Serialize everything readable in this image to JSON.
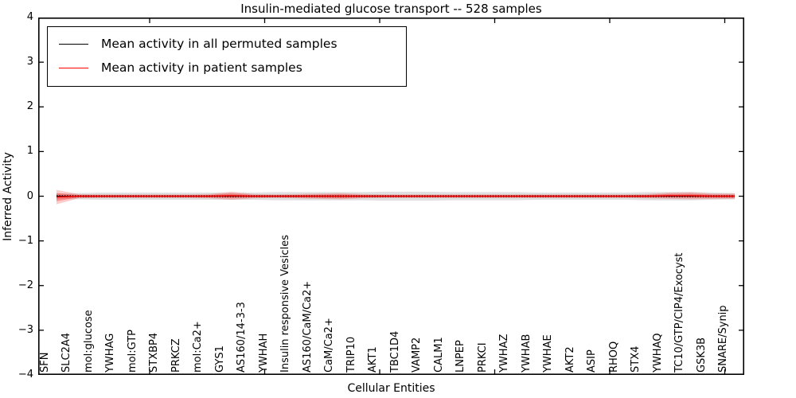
{
  "figure": {
    "title": "Insulin-mediated glucose transport -- 528 samples"
  },
  "axes": {
    "xlabel": "Cellular Entities",
    "ylabel": "Inferred Activity"
  },
  "legend": {
    "position": "upper left",
    "items": [
      {
        "label": "Mean activity in all permuted samples",
        "color": "#000000"
      },
      {
        "label": "Mean activity in patient samples",
        "color": "#ff0000"
      }
    ]
  },
  "chart_data": {
    "type": "line",
    "title": "Insulin-mediated glucose transport -- 528 samples",
    "xlabel": "Cellular Entities",
    "ylabel": "Inferred Activity",
    "ylim": [
      -4,
      4
    ],
    "yticks": [
      4,
      3,
      2,
      1,
      0,
      -1,
      -2,
      -3,
      -4
    ],
    "grid": false,
    "legend_position": "upper left",
    "categories": [
      "SFN",
      "SLC2A4",
      "mol:glucose",
      "YWHAG",
      "mol:GTP",
      "STXBP4",
      "PRKCZ",
      "mol:Ca2+",
      "GYS1",
      "AS160/14-3-3",
      "YWHAH",
      "Insulin responsive Vesicles",
      "AS160/CaM/Ca2+",
      "CaM/Ca2+",
      "TRIP10",
      "AKT1",
      "TBC1D4",
      "VAMP2",
      "CALM1",
      "LNPEP",
      "PRKCI",
      "YWHAZ",
      "YWHAB",
      "YWHAE",
      "AKT2",
      "ASIP",
      "RHOQ",
      "STX4",
      "YWHAQ",
      "TC10/GTP/CIP4/Exocyst",
      "GSK3B",
      "SNARE/Synip"
    ],
    "series": [
      {
        "name": "Mean activity in all permuted samples",
        "color": "#000000",
        "band_color": "#aaaaaa",
        "band_opacity": 0.38,
        "values": [
          0,
          0,
          0,
          0,
          0,
          0,
          0,
          0,
          0,
          0,
          0,
          0,
          0,
          0,
          0,
          0,
          0,
          0,
          0,
          0,
          0,
          0,
          0,
          0,
          0,
          0,
          0,
          0,
          0,
          0,
          0,
          0
        ],
        "band": [
          0.06,
          0.07,
          0.08,
          0.08,
          0.08,
          0.08,
          0.08,
          0.08,
          0.08,
          0.08,
          0.09,
          0.09,
          0.09,
          0.09,
          0.09,
          0.1,
          0.1,
          0.1,
          0.09,
          0.09,
          0.09,
          0.09,
          0.08,
          0.08,
          0.08,
          0.08,
          0.08,
          0.09,
          0.09,
          0.09,
          0.08,
          0.07
        ]
      },
      {
        "name": "Mean activity in patient samples",
        "color": "#ff0000",
        "band_color": "#ff0000",
        "band_opacity": 0.2,
        "values": [
          -0.02,
          0,
          0,
          0,
          0,
          0,
          0,
          0,
          0.01,
          0,
          0,
          0,
          0,
          0,
          0,
          0,
          0,
          0,
          0,
          0,
          0,
          0,
          0,
          0,
          0,
          0,
          0,
          0,
          0.01,
          0.01,
          0,
          0
        ],
        "band": [
          0.16,
          0.05,
          0.04,
          0.04,
          0.04,
          0.04,
          0.04,
          0.05,
          0.09,
          0.05,
          0.04,
          0.05,
          0.06,
          0.07,
          0.05,
          0.04,
          0.04,
          0.04,
          0.04,
          0.04,
          0.04,
          0.04,
          0.04,
          0.04,
          0.04,
          0.04,
          0.04,
          0.05,
          0.07,
          0.08,
          0.06,
          0.06
        ]
      }
    ]
  }
}
